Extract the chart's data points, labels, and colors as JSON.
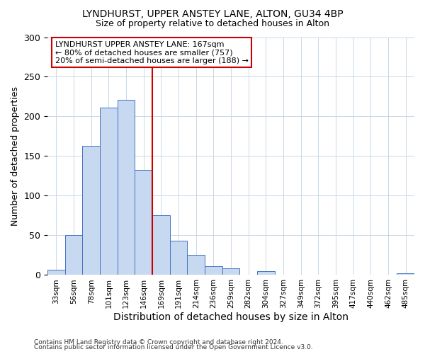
{
  "title_line1": "LYNDHURST, UPPER ANSTEY LANE, ALTON, GU34 4BP",
  "title_line2": "Size of property relative to detached houses in Alton",
  "xlabel": "Distribution of detached houses by size in Alton",
  "ylabel": "Number of detached properties",
  "bin_labels": [
    "33sqm",
    "56sqm",
    "78sqm",
    "101sqm",
    "123sqm",
    "146sqm",
    "169sqm",
    "191sqm",
    "214sqm",
    "236sqm",
    "259sqm",
    "282sqm",
    "304sqm",
    "327sqm",
    "349sqm",
    "372sqm",
    "395sqm",
    "417sqm",
    "440sqm",
    "462sqm",
    "485sqm"
  ],
  "bar_heights": [
    7,
    50,
    163,
    211,
    221,
    133,
    75,
    43,
    25,
    11,
    8,
    0,
    5,
    0,
    0,
    0,
    0,
    0,
    0,
    0,
    2
  ],
  "bar_color": "#c6d9f1",
  "bar_edge_color": "#4472c4",
  "vline_x": 6,
  "vline_color": "#cc0000",
  "ylim": [
    0,
    300
  ],
  "yticks": [
    0,
    50,
    100,
    150,
    200,
    250,
    300
  ],
  "annotation_title": "LYNDHURST UPPER ANSTEY LANE: 167sqm",
  "annotation_line2": "← 80% of detached houses are smaller (757)",
  "annotation_line3": "20% of semi-detached houses are larger (188) →",
  "annotation_box_color": "#cc0000",
  "footer_line1": "Contains HM Land Registry data © Crown copyright and database right 2024.",
  "footer_line2": "Contains public sector information licensed under the Open Government Licence v3.0."
}
